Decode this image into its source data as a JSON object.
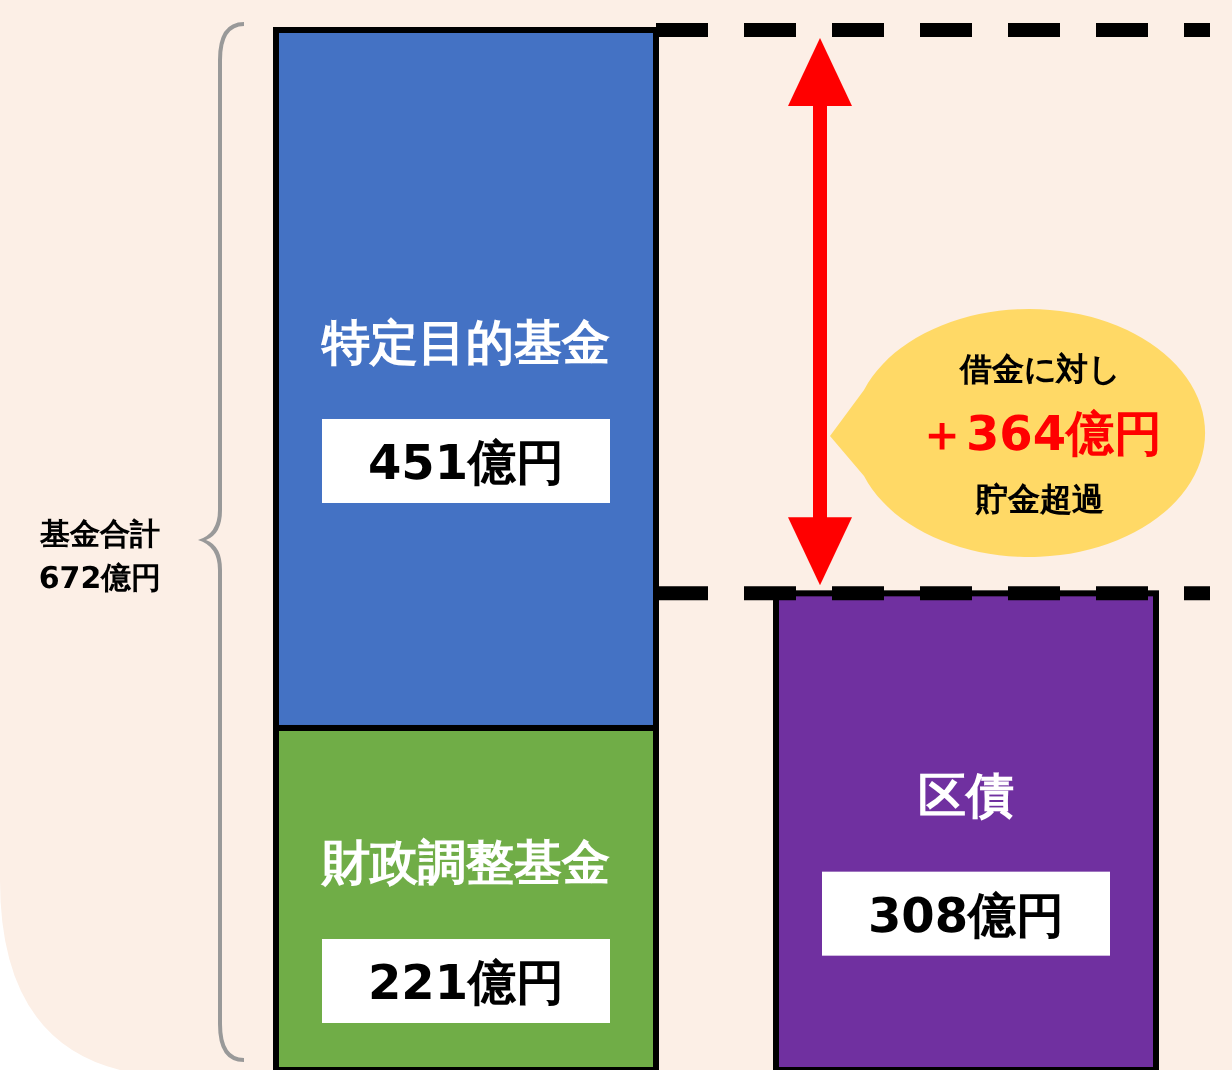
{
  "chart_data": {
    "type": "bar",
    "stacked": true,
    "categories": [
      null,
      null
    ],
    "ylim": [
      0,
      672
    ],
    "series": [
      {
        "name": "財政調整基金",
        "color": "#70ad47",
        "values": [
          221,
          null
        ],
        "value_labels": [
          "221億円",
          null
        ]
      },
      {
        "name": "特定目的基金",
        "color": "#4472c4",
        "values": [
          451,
          null
        ],
        "value_labels": [
          "451億円",
          null
        ]
      },
      {
        "name": "区債",
        "color": "#7030a0",
        "values": [
          null,
          308
        ],
        "value_labels": [
          null,
          "308億円"
        ]
      }
    ],
    "ref_lines": [
      {
        "axis": "y",
        "value": 672,
        "color": "#000000",
        "line_style": "dashed"
      },
      {
        "axis": "y",
        "value": 308,
        "color": "#000000",
        "line_style": "dashed"
      }
    ],
    "annotations": [
      "基金合計\n672億円",
      "借金に対し",
      "＋364億円",
      "貯金超過"
    ]
  }
}
